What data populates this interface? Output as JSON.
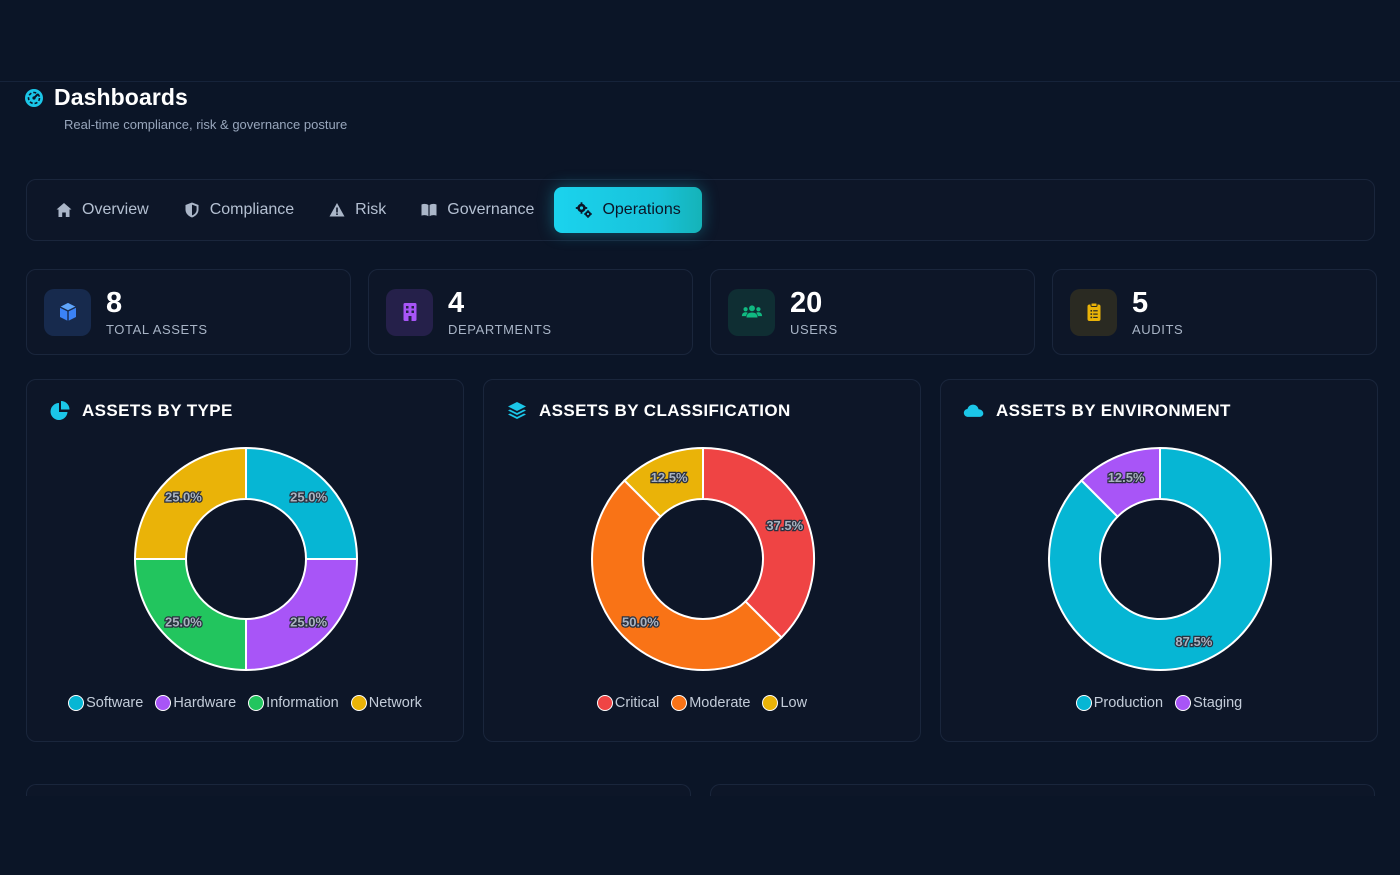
{
  "header": {
    "title": "Dashboards",
    "subtitle": "Real-time compliance, risk & governance posture"
  },
  "tabs": [
    {
      "label": "Overview",
      "icon": "home-icon",
      "active": false
    },
    {
      "label": "Compliance",
      "icon": "shield-icon",
      "active": false
    },
    {
      "label": "Risk",
      "icon": "warning-icon",
      "active": false
    },
    {
      "label": "Governance",
      "icon": "book-icon",
      "active": false
    },
    {
      "label": "Operations",
      "icon": "gears-icon",
      "active": true
    }
  ],
  "stats": [
    {
      "value": "8",
      "label": "TOTAL ASSETS",
      "icon": "cube-icon",
      "color": "#3b82f6",
      "bg": "#172a4d"
    },
    {
      "value": "4",
      "label": "DEPARTMENTS",
      "icon": "building-icon",
      "color": "#a855f7",
      "bg": "#25204a"
    },
    {
      "value": "20",
      "label": "USERS",
      "icon": "users-icon",
      "color": "#10b981",
      "bg": "#0f2e33"
    },
    {
      "value": "5",
      "label": "AUDITS",
      "icon": "clipboard-icon",
      "color": "#eab308",
      "bg": "#2a2a22"
    }
  ],
  "cards": [
    {
      "title": "ASSETS BY TYPE",
      "icon": "pie-chart-icon"
    },
    {
      "title": "ASSETS BY CLASSIFICATION",
      "icon": "layers-icon"
    },
    {
      "title": "ASSETS BY ENVIRONMENT",
      "icon": "cloud-icon"
    }
  ],
  "chart_data": [
    {
      "type": "pie",
      "title": "ASSETS BY TYPE",
      "categories": [
        "Software",
        "Hardware",
        "Information",
        "Network"
      ],
      "values": [
        25.0,
        25.0,
        25.0,
        25.0
      ],
      "labels": [
        "25.0%",
        "25.0%",
        "25.0%",
        "25.0%"
      ],
      "colors": [
        "#06b6d4",
        "#a855f7",
        "#22c55e",
        "#eab308"
      ],
      "legend": "bottom"
    },
    {
      "type": "pie",
      "title": "ASSETS BY CLASSIFICATION",
      "categories": [
        "Critical",
        "Moderate",
        "Low"
      ],
      "values": [
        37.5,
        50.0,
        12.5
      ],
      "labels": [
        "37.5%",
        "50.0%",
        "12.5%"
      ],
      "colors": [
        "#ef4444",
        "#f97316",
        "#eab308"
      ],
      "legend": "bottom"
    },
    {
      "type": "pie",
      "title": "ASSETS BY ENVIRONMENT",
      "categories": [
        "Production",
        "Staging"
      ],
      "values": [
        87.5,
        12.5
      ],
      "labels": [
        "87.5%",
        "12.5%"
      ],
      "colors": [
        "#06b6d4",
        "#a855f7"
      ],
      "legend": "bottom"
    }
  ]
}
